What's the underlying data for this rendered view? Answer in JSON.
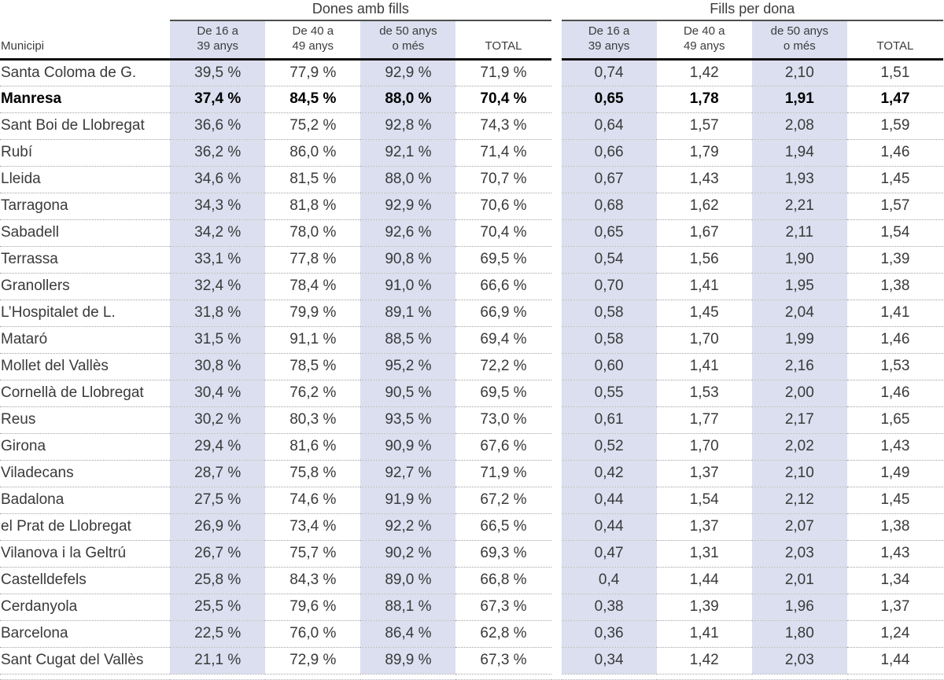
{
  "chart_data": {
    "type": "table",
    "municipality_header": "Municipi",
    "groups": [
      {
        "title": "Dones amb fills",
        "columns": [
          "De 16 a\n39 anys",
          "De 40 a\n49 anys",
          "de 50 anys\no més",
          "TOTAL"
        ]
      },
      {
        "title": "Fills per dona",
        "columns": [
          "De 16 a\n39 anys",
          "De 40 a\n49 anys",
          "de 50 anys\no més",
          "TOTAL"
        ]
      }
    ],
    "shaded_column_indexes_per_group": [
      0,
      2
    ],
    "rows": [
      {
        "municipality": "Santa Coloma de G.",
        "bold": false,
        "dones_amb_fills": [
          "39,5 %",
          "77,9 %",
          "92,9 %",
          "71,9 %"
        ],
        "fills_per_dona": [
          "0,74",
          "1,42",
          "2,10",
          "1,51"
        ]
      },
      {
        "municipality": "Manresa",
        "bold": true,
        "dones_amb_fills": [
          "37,4 %",
          "84,5 %",
          "88,0 %",
          "70,4 %"
        ],
        "fills_per_dona": [
          "0,65",
          "1,78",
          "1,91",
          "1,47"
        ]
      },
      {
        "municipality": "Sant Boi de Llobregat",
        "bold": false,
        "dones_amb_fills": [
          "36,6 %",
          "75,2 %",
          "92,8 %",
          "74,3 %"
        ],
        "fills_per_dona": [
          "0,64",
          "1,57",
          "2,08",
          "1,59"
        ]
      },
      {
        "municipality": "Rubí",
        "bold": false,
        "dones_amb_fills": [
          "36,2 %",
          "86,0 %",
          "92,1 %",
          "71,4 %"
        ],
        "fills_per_dona": [
          "0,66",
          "1,79",
          "1,94",
          "1,46"
        ]
      },
      {
        "municipality": "Lleida",
        "bold": false,
        "dones_amb_fills": [
          "34,6 %",
          "81,5 %",
          "88,0 %",
          "70,7 %"
        ],
        "fills_per_dona": [
          "0,67",
          "1,43",
          "1,93",
          "1,45"
        ]
      },
      {
        "municipality": "Tarragona",
        "bold": false,
        "dones_amb_fills": [
          "34,3 %",
          "81,8 %",
          "92,9 %",
          "70,6 %"
        ],
        "fills_per_dona": [
          "0,68",
          "1,62",
          "2,21",
          "1,57"
        ]
      },
      {
        "municipality": "Sabadell",
        "bold": false,
        "dones_amb_fills": [
          "34,2 %",
          "78,0 %",
          "92,6 %",
          "70,4 %"
        ],
        "fills_per_dona": [
          "0,65",
          "1,67",
          "2,11",
          "1,54"
        ]
      },
      {
        "municipality": "Terrassa",
        "bold": false,
        "dones_amb_fills": [
          "33,1 %",
          "77,8 %",
          "90,8 %",
          "69,5 %"
        ],
        "fills_per_dona": [
          "0,54",
          "1,56",
          "1,90",
          "1,39"
        ]
      },
      {
        "municipality": "Granollers",
        "bold": false,
        "dones_amb_fills": [
          "32,4 %",
          "78,4 %",
          "91,0 %",
          "66,6 %"
        ],
        "fills_per_dona": [
          "0,70",
          "1,41",
          "1,95",
          "1,38"
        ]
      },
      {
        "municipality": "L’Hospitalet de L.",
        "bold": false,
        "dones_amb_fills": [
          "31,8 %",
          "79,9 %",
          "89,1 %",
          "66,9 %"
        ],
        "fills_per_dona": [
          "0,58",
          "1,45",
          "2,04",
          "1,41"
        ]
      },
      {
        "municipality": "Mataró",
        "bold": false,
        "dones_amb_fills": [
          "31,5 %",
          "91,1 %",
          "88,5 %",
          "69,4 %"
        ],
        "fills_per_dona": [
          "0,58",
          "1,70",
          "1,99",
          "1,46"
        ]
      },
      {
        "municipality": "Mollet del Vallès",
        "bold": false,
        "dones_amb_fills": [
          "30,8 %",
          "78,5 %",
          "95,2 %",
          "72,2 %"
        ],
        "fills_per_dona": [
          "0,60",
          "1,41",
          "2,16",
          "1,53"
        ]
      },
      {
        "municipality": "Cornellà de Llobregat",
        "bold": false,
        "dones_amb_fills": [
          "30,4 %",
          "76,2 %",
          "90,5 %",
          "69,5 %"
        ],
        "fills_per_dona": [
          "0,55",
          "1,53",
          "2,00",
          "1,46"
        ]
      },
      {
        "municipality": "Reus",
        "bold": false,
        "dones_amb_fills": [
          "30,2 %",
          "80,3 %",
          "93,5 %",
          "73,0 %"
        ],
        "fills_per_dona": [
          "0,61",
          "1,77",
          "2,17",
          "1,65"
        ]
      },
      {
        "municipality": "Girona",
        "bold": false,
        "dones_amb_fills": [
          "29,4 %",
          "81,6 %",
          "90,9 %",
          "67,6 %"
        ],
        "fills_per_dona": [
          "0,52",
          "1,70",
          "2,02",
          "1,43"
        ]
      },
      {
        "municipality": "Viladecans",
        "bold": false,
        "dones_amb_fills": [
          "28,7 %",
          "75,8 %",
          "92,7 %",
          "71,9 %"
        ],
        "fills_per_dona": [
          "0,42",
          "1,37",
          "2,10",
          "1,49"
        ]
      },
      {
        "municipality": "Badalona",
        "bold": false,
        "dones_amb_fills": [
          "27,5 %",
          "74,6 %",
          "91,9 %",
          "67,2 %"
        ],
        "fills_per_dona": [
          "0,44",
          "1,54",
          "2,12",
          "1,45"
        ]
      },
      {
        "municipality": "el Prat de Llobregat",
        "bold": false,
        "dones_amb_fills": [
          "26,9 %",
          "73,4 %",
          "92,2 %",
          "66,5 %"
        ],
        "fills_per_dona": [
          "0,44",
          "1,37",
          "2,07",
          "1,38"
        ]
      },
      {
        "municipality": "Vilanova i la Geltrú",
        "bold": false,
        "dones_amb_fills": [
          "26,7 %",
          "75,7 %",
          "90,2 %",
          "69,3 %"
        ],
        "fills_per_dona": [
          "0,47",
          "1,31",
          "2,03",
          "1,43"
        ]
      },
      {
        "municipality": "Castelldefels",
        "bold": false,
        "dones_amb_fills": [
          "25,8 %",
          "84,3 %",
          "89,0 %",
          "66,8 %"
        ],
        "fills_per_dona": [
          "0,4",
          "1,44",
          "2,01",
          "1,34"
        ]
      },
      {
        "municipality": "Cerdanyola",
        "bold": false,
        "dones_amb_fills": [
          "25,5 %",
          "79,6 %",
          "88,1 %",
          "67,3 %"
        ],
        "fills_per_dona": [
          "0,38",
          "1,39",
          "1,96",
          "1,37"
        ]
      },
      {
        "municipality": "Barcelona",
        "bold": false,
        "dones_amb_fills": [
          "22,5 %",
          "76,0 %",
          "86,4 %",
          "62,8 %"
        ],
        "fills_per_dona": [
          "0,36",
          "1,41",
          "1,80",
          "1,24"
        ]
      },
      {
        "municipality": "Sant Cugat del Vallès",
        "bold": false,
        "dones_amb_fills": [
          "21,1 %",
          "72,9 %",
          "89,9 %",
          "67,3 %"
        ],
        "fills_per_dona": [
          "0,34",
          "1,42",
          "2,03",
          "1,44"
        ]
      }
    ]
  },
  "colors": {
    "column_band": "#dbdfef",
    "text": "#3a3a3a",
    "bold_text": "#000000",
    "dotted_rule": "#a3a3a9",
    "header_rule": "#101010",
    "group_rule": "#4e4e4e"
  }
}
